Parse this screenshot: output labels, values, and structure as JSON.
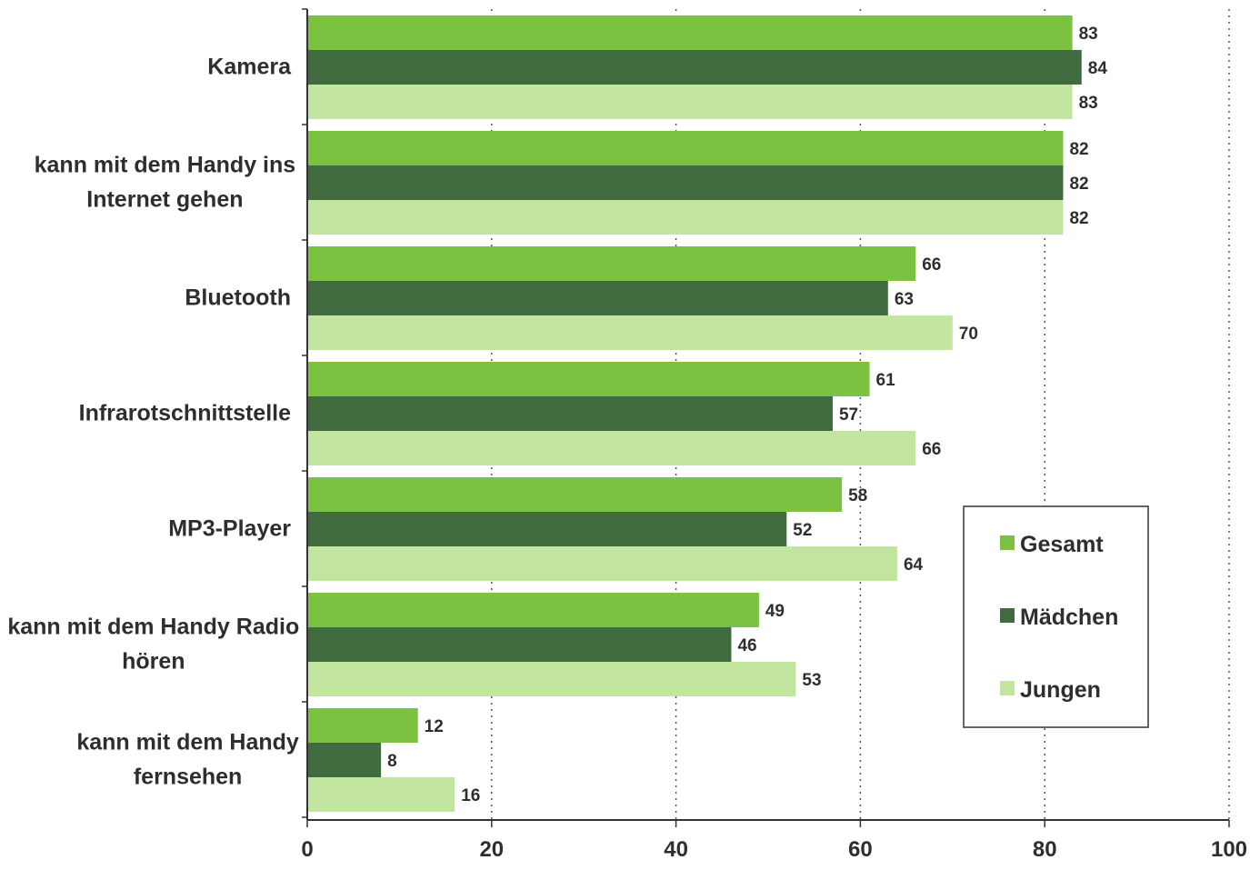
{
  "chart_data": {
    "type": "bar",
    "orientation": "horizontal",
    "categories": [
      [
        "Kamera"
      ],
      [
        "kann mit dem Handy ins",
        "Internet gehen"
      ],
      [
        "Bluetooth"
      ],
      [
        "Infrarotschnittstelle"
      ],
      [
        "MP3-Player"
      ],
      [
        "kann mit dem Handy Radio",
        "hören"
      ],
      [
        "kann mit dem Handy",
        "fernsehen"
      ]
    ],
    "series": [
      {
        "name": "Gesamt",
        "color": "#7cc242",
        "values": [
          83,
          82,
          66,
          61,
          58,
          49,
          12
        ]
      },
      {
        "name": "Mädchen",
        "color": "#3f6b3f",
        "values": [
          84,
          82,
          63,
          57,
          52,
          46,
          8
        ]
      },
      {
        "name": "Jungen",
        "color": "#c2e5a0",
        "values": [
          83,
          82,
          70,
          66,
          64,
          53,
          16
        ]
      }
    ],
    "xlim": [
      0,
      100
    ],
    "xticks": [
      0,
      20,
      40,
      60,
      80,
      100
    ],
    "grid": "vertical dotted",
    "legend_position": "right",
    "title": "",
    "xlabel": "",
    "ylabel": ""
  }
}
